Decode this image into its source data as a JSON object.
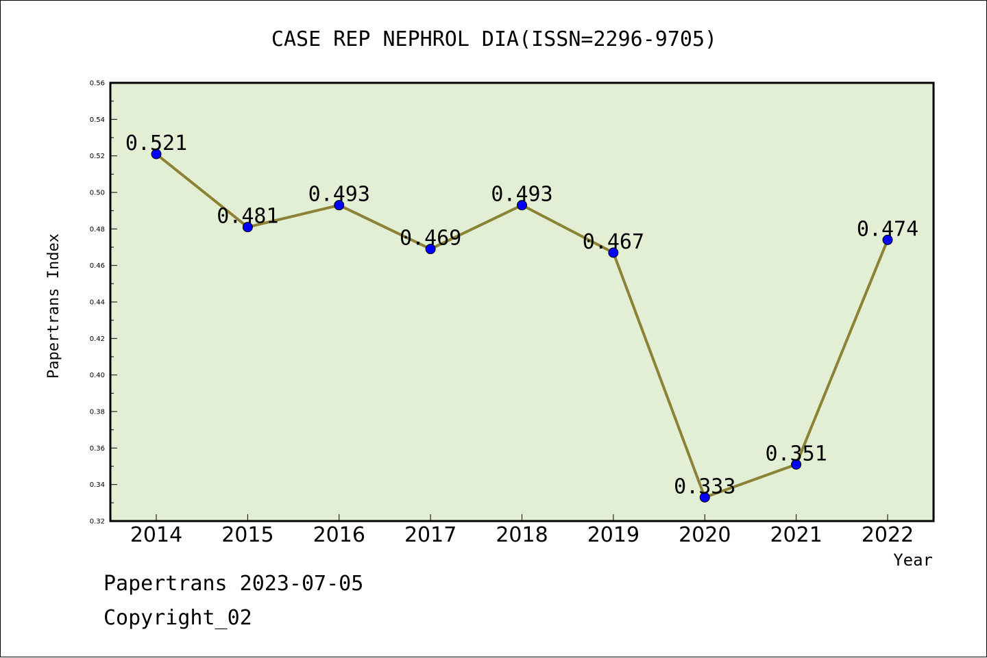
{
  "chart_data": {
    "type": "line",
    "title": "CASE REP NEPHROL DIA(ISSN=2296-9705)",
    "xlabel": "Year",
    "ylabel": "Papertrans Index",
    "categories": [
      "2014",
      "2015",
      "2016",
      "2017",
      "2018",
      "2019",
      "2020",
      "2021",
      "2022"
    ],
    "series": [
      {
        "values": [
          0.521,
          0.481,
          0.493,
          0.469,
          0.493,
          0.467,
          0.333,
          0.351,
          0.474
        ],
        "labels": [
          "0.521",
          "0.481",
          "0.493",
          "0.469",
          "0.493",
          "0.467",
          "0.333",
          "0.351",
          "0.474"
        ]
      }
    ],
    "ylim": [
      0.32,
      0.56
    ],
    "yticks": [
      "0.32",
      "0.34",
      "0.36",
      "0.38",
      "0.40",
      "0.42",
      "0.44",
      "0.46",
      "0.48",
      "0.50",
      "0.52",
      "0.54",
      "0.56"
    ],
    "grid": false,
    "colors": {
      "plot_background": "#e2efd5",
      "line": "#8b8235",
      "marker": "#0000ff"
    }
  },
  "footer": {
    "line1": "Papertrans 2023-07-05",
    "line2": "Copyright_02"
  }
}
